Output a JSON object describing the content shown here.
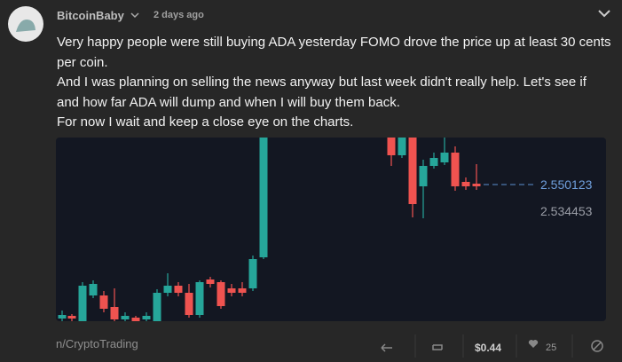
{
  "post": {
    "author": "BitcoinBaby",
    "time": "2 days ago",
    "paragraphs": [
      "Very happy people were still buying ADA yesterday FOMO drove the price up at least 30 cents per coin.",
      "And I was planning on selling the news anyway but last week didn't really help. Let's see if and how far ADA will dump and when I will buy them back.",
      "For now I wait and keep a close eye on the charts."
    ],
    "chart_labels": [
      "2.550123",
      "2.534453"
    ],
    "community": "n/CryptoTrading",
    "tip": "$0.44",
    "likes": "25"
  }
}
